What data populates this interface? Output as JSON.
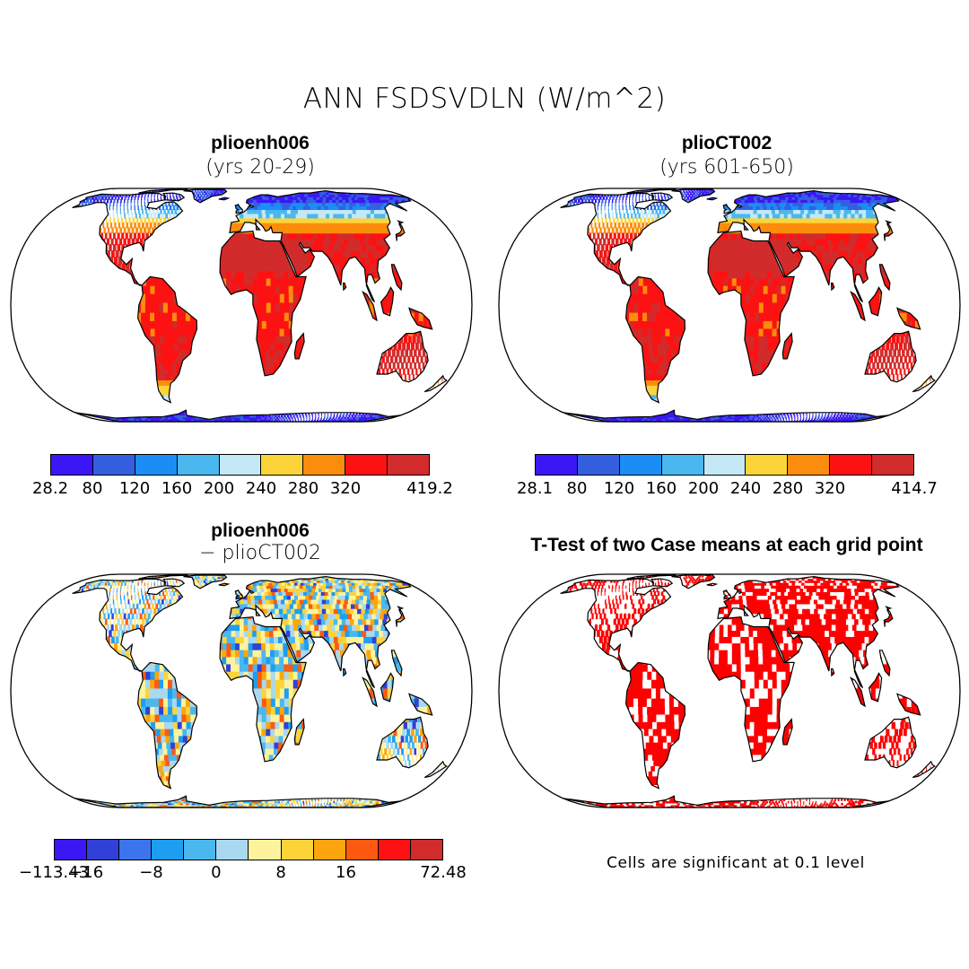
{
  "title": "ANN FSDSVDLN (W/m^2)",
  "panels": [
    {
      "title": "plioenh006",
      "subtitle": "(yrs 20-29)",
      "type": "field",
      "colors": [
        "#3b17f5",
        "#3460e0",
        "#1a8ef5",
        "#4bb7ef",
        "#c4e8f6",
        "#fcd43a",
        "#fc8c0c",
        "#fc1212",
        "#d22b2b"
      ],
      "ticks": [
        "28.2",
        "80",
        "120",
        "160",
        "200",
        "240",
        "280",
        "320",
        "",
        "419.2"
      ]
    },
    {
      "title": "plioCT002",
      "subtitle": "(yrs 601-650)",
      "type": "field",
      "colors": [
        "#3b17f5",
        "#3460e0",
        "#1a8ef5",
        "#4bb7ef",
        "#c4e8f6",
        "#fcd43a",
        "#fc8c0c",
        "#fc1212",
        "#d22b2b"
      ],
      "ticks": [
        "28.1",
        "80",
        "120",
        "160",
        "200",
        "240",
        "280",
        "320",
        "",
        "414.7"
      ]
    },
    {
      "title": "plioenh006",
      "subtitle": "− plioCT002",
      "type": "diff",
      "colors": [
        "#3b17f5",
        "#3040d8",
        "#3b74ec",
        "#1d9ef0",
        "#4bb7ef",
        "#a8d8f2",
        "#fcf39c",
        "#fcd43a",
        "#fca50c",
        "#fc5a10",
        "#fc1212",
        "#d22b2b"
      ],
      "ticks": [
        "−113.43",
        "−16",
        "",
        "−8",
        "",
        "0",
        "",
        "8",
        "",
        "16",
        "",
        "",
        "72.48"
      ]
    },
    {
      "title": "T-Test of two Case means at each grid point",
      "subtitle": "",
      "type": "ttest",
      "note": "Cells are significant at 0.1 level"
    }
  ]
}
